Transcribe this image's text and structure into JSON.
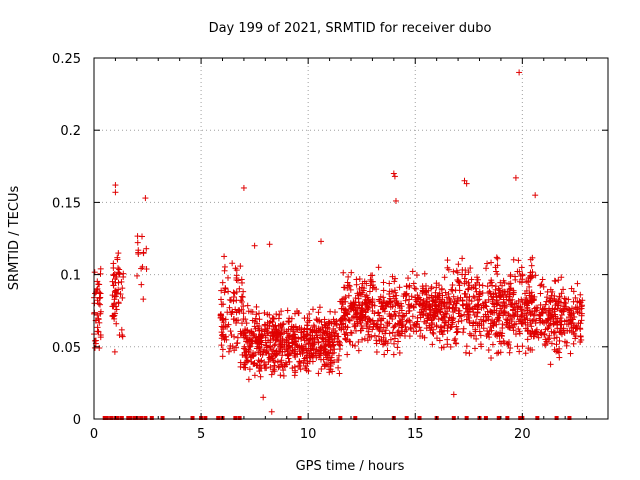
{
  "chart_data": {
    "type": "scatter",
    "title": "Day 199 of 2021, SRMTID for receiver dubo",
    "xlabel": "GPS time / hours",
    "ylabel": "SRMTID / TECUs",
    "xlim": [
      0,
      24
    ],
    "ylim": [
      0,
      0.25
    ],
    "x_ticks": [
      0,
      5,
      10,
      15,
      20
    ],
    "y_ticks": [
      0,
      0.05,
      0.1,
      0.15,
      0.2,
      0.25
    ],
    "x_tick_labels": [
      "0",
      "5",
      "10",
      "15",
      "20"
    ],
    "y_tick_labels": [
      "0",
      "0.05",
      "0.1",
      "0.15",
      "0.2",
      "0.25"
    ],
    "grid": true,
    "marker": "plus",
    "series_color": "#e00000",
    "zero_markers_x": [
      0.5,
      0.6,
      0.8,
      1.0,
      1.1,
      1.3,
      1.6,
      1.7,
      1.9,
      2.0,
      2.2,
      2.4,
      2.7,
      3.2,
      4.6,
      5.0,
      5.2,
      5.8,
      6.0,
      6.6,
      6.8,
      9.6,
      11.5,
      12.2,
      14.0,
      14.6,
      15.2,
      16.0,
      16.8,
      17.4,
      18.0,
      18.3,
      18.9,
      19.3,
      19.9,
      20.0,
      20.7,
      21.6,
      22.2
    ],
    "clusters": [
      {
        "x_range": [
          0.0,
          0.35
        ],
        "y_center": 0.075,
        "y_spread": 0.03,
        "count": 40
      },
      {
        "x_range": [
          0.85,
          1.4
        ],
        "y_center": 0.085,
        "y_spread": 0.038,
        "count": 55
      },
      {
        "x_range": [
          2.0,
          2.5
        ],
        "y_center": 0.11,
        "y_spread": 0.022,
        "count": 15
      },
      {
        "x_range": [
          5.9,
          7.0
        ],
        "y_center": 0.07,
        "y_spread": 0.035,
        "count": 110
      },
      {
        "x_range": [
          7.0,
          11.5
        ],
        "y_center": 0.053,
        "y_spread": 0.022,
        "count": 620
      },
      {
        "x_range": [
          11.5,
          14.5
        ],
        "y_center": 0.073,
        "y_spread": 0.025,
        "count": 360
      },
      {
        "x_range": [
          14.5,
          16.5
        ],
        "y_center": 0.075,
        "y_spread": 0.022,
        "count": 220
      },
      {
        "x_range": [
          16.5,
          18.5
        ],
        "y_center": 0.078,
        "y_spread": 0.03,
        "count": 210
      },
      {
        "x_range": [
          18.5,
          20.5
        ],
        "y_center": 0.078,
        "y_spread": 0.03,
        "count": 280
      },
      {
        "x_range": [
          20.5,
          22.8
        ],
        "y_center": 0.07,
        "y_spread": 0.025,
        "count": 250
      }
    ],
    "points": [
      {
        "x": 19.85,
        "y": 0.24
      },
      {
        "x": 7.0,
        "y": 0.16
      },
      {
        "x": 14.0,
        "y": 0.17
      },
      {
        "x": 14.05,
        "y": 0.168
      },
      {
        "x": 17.3,
        "y": 0.165
      },
      {
        "x": 17.4,
        "y": 0.163
      },
      {
        "x": 19.7,
        "y": 0.167
      },
      {
        "x": 1.0,
        "y": 0.162
      },
      {
        "x": 1.0,
        "y": 0.157
      },
      {
        "x": 2.4,
        "y": 0.153
      },
      {
        "x": 20.6,
        "y": 0.155
      },
      {
        "x": 14.1,
        "y": 0.151
      },
      {
        "x": 7.5,
        "y": 0.12
      },
      {
        "x": 8.2,
        "y": 0.121
      },
      {
        "x": 10.6,
        "y": 0.123
      },
      {
        "x": 2.3,
        "y": 0.083
      },
      {
        "x": 8.3,
        "y": 0.005
      },
      {
        "x": 7.9,
        "y": 0.015
      },
      {
        "x": 16.8,
        "y": 0.017
      }
    ]
  }
}
